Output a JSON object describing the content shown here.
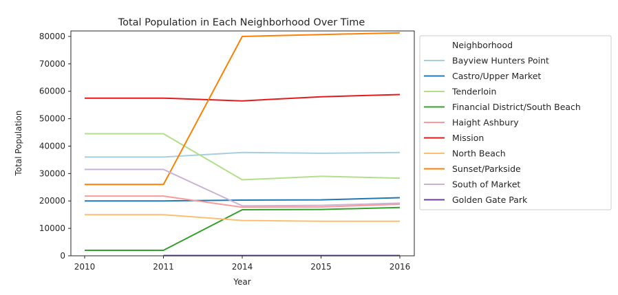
{
  "chart_data": {
    "type": "line",
    "title": "Total Population in Each Neighborhood Over Time",
    "xlabel": "Year",
    "ylabel": "Total Population",
    "x": [
      "2010",
      "2011",
      "2014",
      "2015",
      "2016"
    ],
    "ylim": [
      0,
      82000
    ],
    "yticks": [
      0,
      10000,
      20000,
      30000,
      40000,
      50000,
      60000,
      70000,
      80000
    ],
    "grid": false,
    "legend_title": "Neighborhood",
    "legend_position": "outside-right",
    "series": [
      {
        "name": "Bayview Hunters Point",
        "color": "#a6cee3",
        "values": [
          36000,
          36000,
          37700,
          37400,
          37700
        ]
      },
      {
        "name": "Castro/Upper Market",
        "color": "#1f78b4",
        "values": [
          20000,
          20000,
          20300,
          20400,
          21200
        ]
      },
      {
        "name": "Tenderloin",
        "color": "#b2df8a",
        "values": [
          44500,
          44500,
          27700,
          29000,
          28300
        ]
      },
      {
        "name": "Financial District/South Beach",
        "color": "#33a02c",
        "values": [
          2000,
          2000,
          16800,
          16900,
          17600
        ]
      },
      {
        "name": "Haight Ashbury",
        "color": "#fb9a99",
        "values": [
          21800,
          21800,
          17700,
          17800,
          18800
        ]
      },
      {
        "name": "Mission",
        "color": "#e31a1c",
        "values": [
          57500,
          57500,
          56500,
          58000,
          58800
        ]
      },
      {
        "name": "North Beach",
        "color": "#fdbf6f",
        "values": [
          15000,
          15000,
          12900,
          12600,
          12600
        ]
      },
      {
        "name": "Sunset/Parkside",
        "color": "#ff7f00",
        "values": [
          26000,
          26000,
          80000,
          80700,
          81300
        ]
      },
      {
        "name": "South of Market",
        "color": "#cab2d6",
        "values": [
          31500,
          31500,
          18200,
          18400,
          19200
        ]
      },
      {
        "name": "Golden Gate Park",
        "color": "#6a3d9a",
        "values": [
          null,
          100,
          100,
          100,
          100
        ]
      }
    ]
  }
}
